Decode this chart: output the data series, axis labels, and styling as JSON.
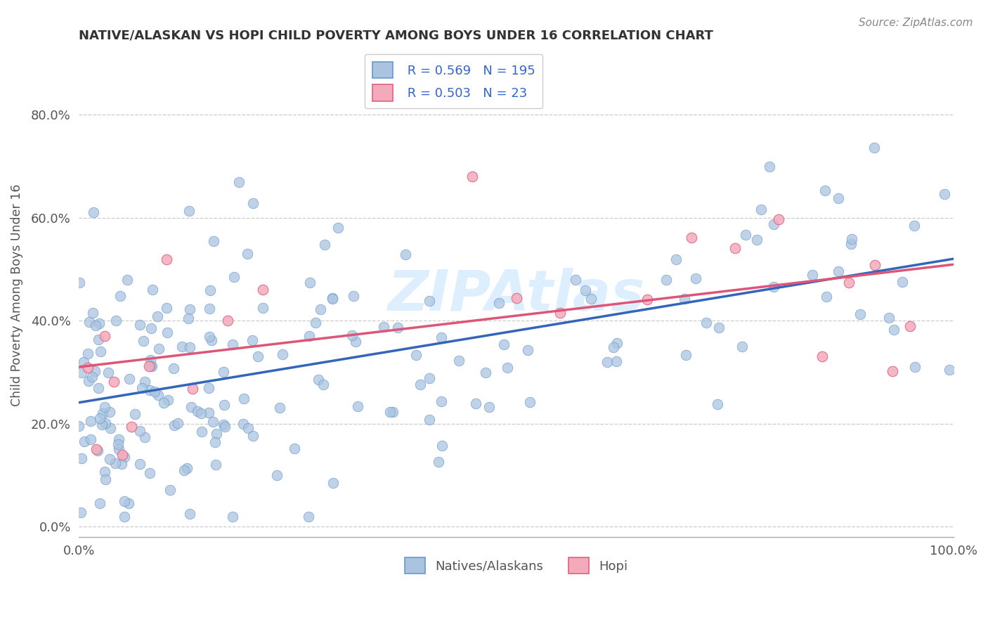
{
  "title": "NATIVE/ALASKAN VS HOPI CHILD POVERTY AMONG BOYS UNDER 16 CORRELATION CHART",
  "source": "Source: ZipAtlas.com",
  "ylabel": "Child Poverty Among Boys Under 16",
  "xlim": [
    0.0,
    1.0
  ],
  "ylim": [
    -0.02,
    0.92
  ],
  "yticks": [
    0.0,
    0.2,
    0.4,
    0.6,
    0.8
  ],
  "ytick_labels": [
    "0.0%",
    "20.0%",
    "40.0%",
    "60.0%",
    "80.0%"
  ],
  "xtick_left": "0.0%",
  "xtick_right": "100.0%",
  "blue_R": 0.569,
  "blue_N": 195,
  "pink_R": 0.503,
  "pink_N": 23,
  "blue_color": "#aac4e0",
  "pink_color": "#f4aabb",
  "blue_edge_color": "#6699cc",
  "pink_edge_color": "#e06080",
  "blue_line_color": "#3366bb",
  "pink_line_color": "#dd5577",
  "watermark_color": "#ddeeff",
  "legend_label_blue": "Natives/Alaskans",
  "legend_label_pink": "Hopi",
  "title_color": "#333333",
  "stat_color": "#3366cc",
  "title_fontsize": 13,
  "source_fontsize": 11,
  "legend_fontsize": 13,
  "seed": 12345
}
